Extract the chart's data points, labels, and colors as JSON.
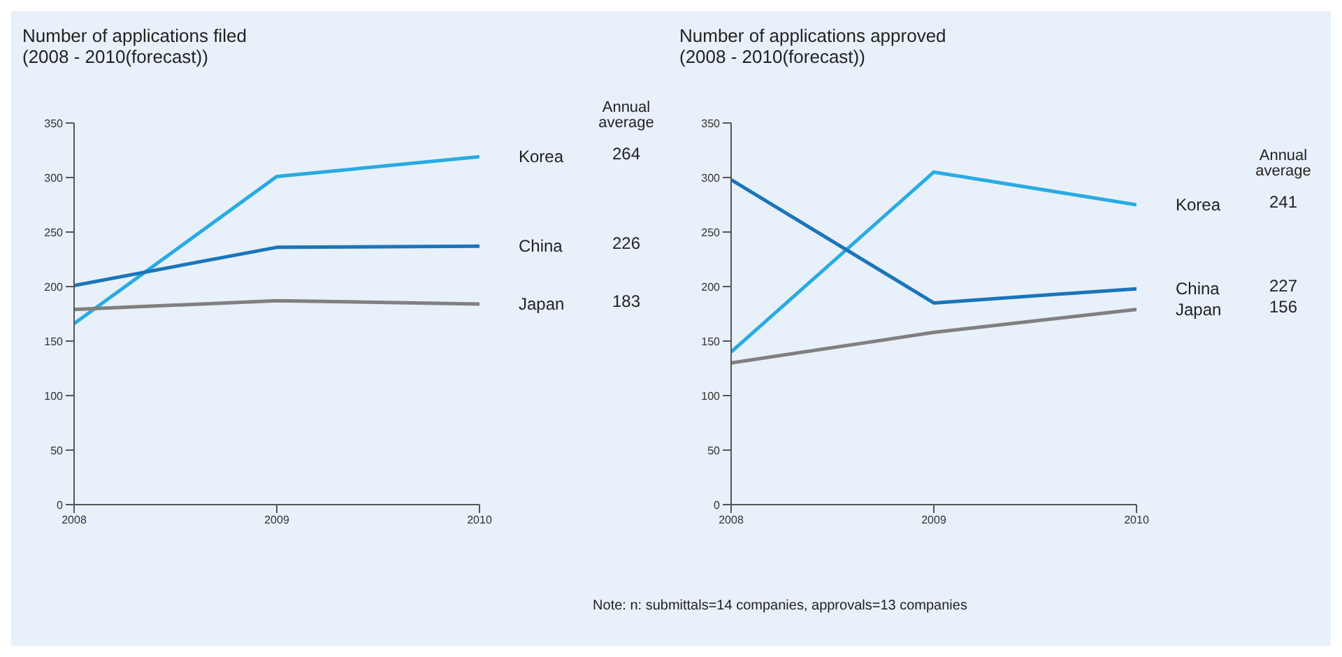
{
  "chart_data": [
    {
      "type": "line",
      "title": "Number of applications filed",
      "subtitle": "(2008 - 2010(forecast))",
      "categories": [
        "2008",
        "2009",
        "2010"
      ],
      "ylim": [
        0,
        350
      ],
      "yticks": [
        0,
        50,
        100,
        150,
        200,
        250,
        300,
        350
      ],
      "grid": false,
      "marker": "none",
      "annotations": [
        "Annual average",
        "264",
        "226",
        "183"
      ],
      "series": [
        {
          "name": "Korea",
          "color": "#29abe2",
          "values": [
            166,
            301,
            319
          ]
        },
        {
          "name": "China",
          "color": "#1a75bb",
          "values": [
            201,
            236,
            237
          ]
        },
        {
          "name": "Japan",
          "color": "#808080",
          "values": [
            179,
            187,
            184
          ]
        }
      ]
    },
    {
      "type": "line",
      "title": "Number of applications approved",
      "subtitle": "(2008 - 2010(forecast))",
      "categories": [
        "2008",
        "2009",
        "2010"
      ],
      "ylim": [
        0,
        350
      ],
      "yticks": [
        0,
        50,
        100,
        150,
        200,
        250,
        300,
        350
      ],
      "grid": false,
      "marker": "none",
      "annotations": [
        "Annual average",
        "241",
        "227",
        "156",
        "Note: n: submittals=14 companies, approvals=13 companies"
      ],
      "series": [
        {
          "name": "Korea",
          "color": "#29abe2",
          "values": [
            140,
            305,
            275
          ]
        },
        {
          "name": "China",
          "color": "#1a75bb",
          "values": [
            298,
            185,
            198
          ]
        },
        {
          "name": "Japan",
          "color": "#808080",
          "values": [
            130,
            158,
            179
          ]
        }
      ]
    }
  ]
}
